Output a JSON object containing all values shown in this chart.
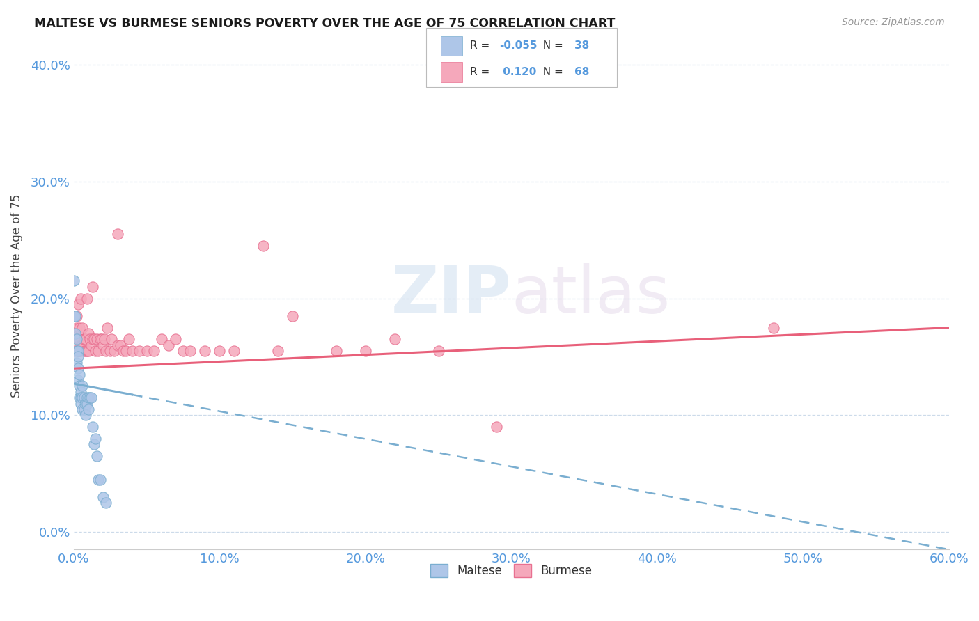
{
  "title": "MALTESE VS BURMESE SENIORS POVERTY OVER THE AGE OF 75 CORRELATION CHART",
  "source": "Source: ZipAtlas.com",
  "ylabel": "Seniors Poverty Over the Age of 75",
  "xlim": [
    0.0,
    0.6
  ],
  "ylim": [
    -0.015,
    0.42
  ],
  "yticks": [
    0.0,
    0.1,
    0.2,
    0.3,
    0.4
  ],
  "xticks": [
    0.0,
    0.1,
    0.2,
    0.3,
    0.4,
    0.5,
    0.6
  ],
  "maltese_color": "#aec6e8",
  "burmese_color": "#f5a8bb",
  "maltese_edge_color": "#7aaed0",
  "burmese_edge_color": "#e87090",
  "maltese_line_color": "#7aaed0",
  "burmese_line_color": "#e8607a",
  "r_maltese": -0.055,
  "n_maltese": 38,
  "r_burmese": 0.12,
  "n_burmese": 68,
  "maltese_scatter_x": [
    0.0,
    0.0,
    0.001,
    0.001,
    0.002,
    0.002,
    0.002,
    0.003,
    0.003,
    0.003,
    0.003,
    0.004,
    0.004,
    0.004,
    0.005,
    0.005,
    0.005,
    0.006,
    0.006,
    0.006,
    0.007,
    0.007,
    0.008,
    0.008,
    0.009,
    0.009,
    0.01,
    0.01,
    0.011,
    0.012,
    0.013,
    0.014,
    0.015,
    0.016,
    0.017,
    0.018,
    0.02,
    0.022
  ],
  "maltese_scatter_y": [
    0.215,
    0.185,
    0.185,
    0.17,
    0.165,
    0.155,
    0.145,
    0.155,
    0.15,
    0.14,
    0.13,
    0.135,
    0.125,
    0.115,
    0.12,
    0.115,
    0.11,
    0.125,
    0.115,
    0.105,
    0.115,
    0.105,
    0.11,
    0.1,
    0.115,
    0.11,
    0.115,
    0.105,
    0.115,
    0.115,
    0.09,
    0.075,
    0.08,
    0.065,
    0.045,
    0.045,
    0.03,
    0.025
  ],
  "burmese_scatter_x": [
    0.0,
    0.001,
    0.002,
    0.002,
    0.003,
    0.003,
    0.003,
    0.004,
    0.004,
    0.004,
    0.005,
    0.005,
    0.005,
    0.006,
    0.006,
    0.007,
    0.007,
    0.007,
    0.008,
    0.008,
    0.009,
    0.009,
    0.01,
    0.01,
    0.011,
    0.012,
    0.013,
    0.013,
    0.014,
    0.015,
    0.016,
    0.017,
    0.018,
    0.019,
    0.02,
    0.021,
    0.022,
    0.023,
    0.025,
    0.026,
    0.028,
    0.03,
    0.03,
    0.032,
    0.034,
    0.036,
    0.038,
    0.04,
    0.045,
    0.05,
    0.055,
    0.06,
    0.065,
    0.07,
    0.075,
    0.08,
    0.09,
    0.1,
    0.11,
    0.13,
    0.14,
    0.15,
    0.18,
    0.2,
    0.22,
    0.25,
    0.29,
    0.48
  ],
  "burmese_scatter_y": [
    0.155,
    0.17,
    0.175,
    0.185,
    0.155,
    0.165,
    0.195,
    0.155,
    0.165,
    0.175,
    0.155,
    0.16,
    0.2,
    0.16,
    0.175,
    0.155,
    0.165,
    0.165,
    0.155,
    0.165,
    0.155,
    0.2,
    0.155,
    0.17,
    0.165,
    0.16,
    0.21,
    0.165,
    0.165,
    0.155,
    0.165,
    0.155,
    0.165,
    0.165,
    0.16,
    0.165,
    0.155,
    0.175,
    0.155,
    0.165,
    0.155,
    0.16,
    0.255,
    0.16,
    0.155,
    0.155,
    0.165,
    0.155,
    0.155,
    0.155,
    0.155,
    0.165,
    0.16,
    0.165,
    0.155,
    0.155,
    0.155,
    0.155,
    0.155,
    0.245,
    0.155,
    0.185,
    0.155,
    0.155,
    0.165,
    0.155,
    0.09,
    0.175
  ],
  "watermark_zip": "ZIP",
  "watermark_atlas": "atlas",
  "background_color": "#ffffff",
  "grid_color": "#c8d8e8",
  "tick_label_color": "#5599dd",
  "axis_label_color": "#444444",
  "maltese_line_y0": 0.127,
  "maltese_line_y1": -0.015,
  "burmese_line_y0": 0.14,
  "burmese_line_y1": 0.175
}
